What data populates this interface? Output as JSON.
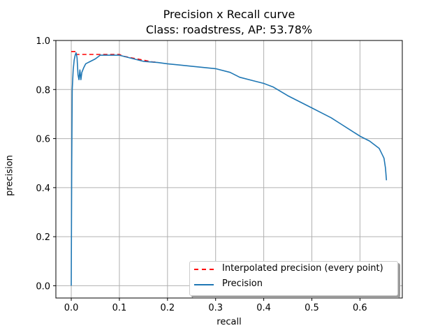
{
  "chart_data": {
    "type": "line",
    "title": "Precision x Recall curve",
    "subtitle": "Class: roadstress, AP: 53.78%",
    "xlabel": "recall",
    "ylabel": "precision",
    "xlim": [
      -0.032,
      0.688
    ],
    "ylim": [
      -0.05,
      1.0
    ],
    "xticks": [
      0.0,
      0.1,
      0.2,
      0.3,
      0.4,
      0.5,
      0.6
    ],
    "xtick_labels": [
      "0.0",
      "0.1",
      "0.2",
      "0.3",
      "0.4",
      "0.5",
      "0.6"
    ],
    "yticks": [
      0.0,
      0.2,
      0.4,
      0.6,
      0.8,
      1.0
    ],
    "ytick_labels": [
      "0.0",
      "0.2",
      "0.4",
      "0.6",
      "0.8",
      "1.0"
    ],
    "grid": true,
    "legend_position": "lower right",
    "series": [
      {
        "name": "Interpolated precision (every point)",
        "style": "dashed",
        "color": "#ff0000",
        "x": [
          0.0,
          0.01,
          0.01,
          0.07,
          0.1,
          0.11,
          0.17,
          0.18
        ],
        "y": [
          0.955,
          0.955,
          0.943,
          0.943,
          0.943,
          0.935,
          0.912,
          0.912
        ]
      },
      {
        "name": "Precision",
        "style": "solid",
        "color": "#1f77b4",
        "x": [
          0.0,
          0.001,
          0.002,
          0.004,
          0.006,
          0.008,
          0.01,
          0.012,
          0.014,
          0.016,
          0.018,
          0.02,
          0.022,
          0.026,
          0.03,
          0.035,
          0.04,
          0.05,
          0.06,
          0.08,
          0.1,
          0.12,
          0.15,
          0.18,
          0.2,
          0.25,
          0.3,
          0.33,
          0.35,
          0.38,
          0.4,
          0.42,
          0.45,
          0.48,
          0.5,
          0.52,
          0.54,
          0.56,
          0.58,
          0.6,
          0.62,
          0.64,
          0.645,
          0.65,
          0.653,
          0.655
        ],
        "y": [
          0.0,
          0.5,
          0.8,
          0.88,
          0.92,
          0.94,
          0.95,
          0.93,
          0.86,
          0.84,
          0.88,
          0.84,
          0.87,
          0.89,
          0.905,
          0.91,
          0.915,
          0.925,
          0.94,
          0.94,
          0.94,
          0.93,
          0.915,
          0.91,
          0.905,
          0.895,
          0.885,
          0.87,
          0.85,
          0.835,
          0.825,
          0.81,
          0.775,
          0.745,
          0.725,
          0.705,
          0.685,
          0.66,
          0.635,
          0.61,
          0.59,
          0.56,
          0.54,
          0.52,
          0.48,
          0.43
        ]
      }
    ]
  }
}
